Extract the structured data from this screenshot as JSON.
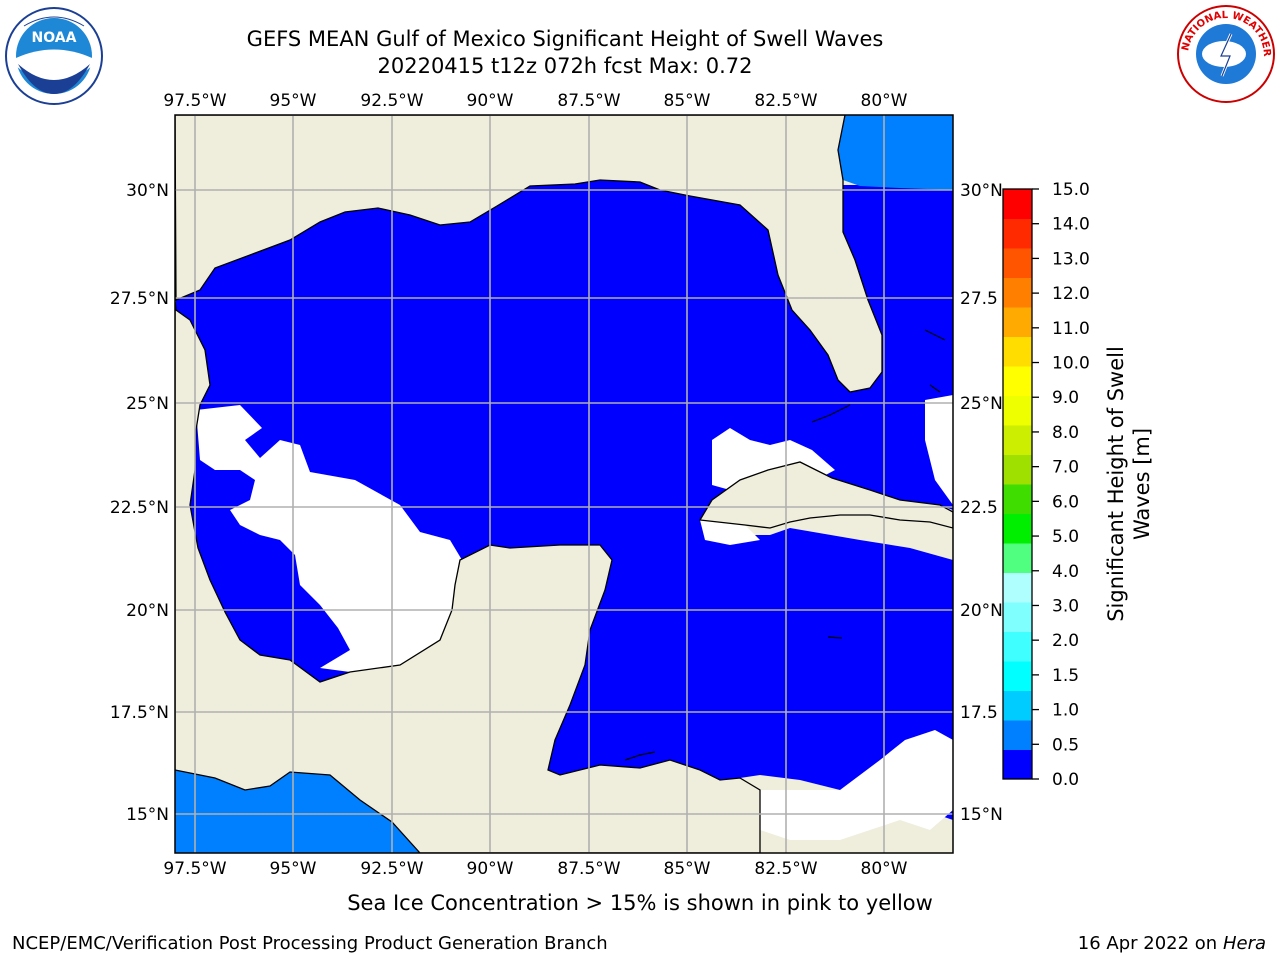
{
  "title": {
    "line1": "GEFS MEAN Gulf of Mexico Significant Height of Swell Waves",
    "line2": "20220415 t12z 072h fcst   Max: 0.72"
  },
  "logos": {
    "left": {
      "icon": "noaa-logo",
      "text": "NOAA"
    },
    "right": {
      "icon": "nws-logo",
      "text": "NATIONAL WEATHER SERVICE"
    }
  },
  "map": {
    "lon_labels": [
      "97.5°W",
      "95°W",
      "92.5°W",
      "90°W",
      "87.5°W",
      "85°W",
      "82.5°W",
      "80°W"
    ],
    "lat_labels": [
      "30°N",
      "27.5°N",
      "25°N",
      "22.5°N",
      "20°N",
      "17.5°N",
      "15°N"
    ],
    "lat_labels_right": [
      "30°N",
      "27.5",
      "25°N",
      "22.5",
      "20°N",
      "17.5",
      "15°N"
    ],
    "lon_range": [
      -98,
      -79
    ],
    "lat_range": [
      14,
      32
    ],
    "colors": {
      "land": "#efeddc",
      "ocean_low": "#0000ff",
      "ocean_mid": "#0080ff",
      "ice_free_missing": "#ffffff",
      "grid": "#b0b0b0",
      "coast": "#000000"
    }
  },
  "colorbar": {
    "label": "Significant Height of Swell Waves [m]",
    "label_line1": "Significant Height of Swell",
    "label_line2": "Waves [m]",
    "ticks": [
      "15.0",
      "14.0",
      "13.0",
      "12.0",
      "11.0",
      "10.0",
      "9.0",
      "8.0",
      "7.0",
      "6.0",
      "5.0",
      "4.0",
      "3.0",
      "2.0",
      "1.5",
      "1.0",
      "0.5",
      "0.0"
    ],
    "colors_bottom_to_top": [
      "#0000ff",
      "#0080ff",
      "#00ccff",
      "#00ffff",
      "#40ffff",
      "#80ffff",
      "#b0ffff",
      "#50ff80",
      "#00ee00",
      "#40dd00",
      "#a0e000",
      "#ccee00",
      "#eeff00",
      "#ffff00",
      "#ffdd00",
      "#ffaa00",
      "#ff8000",
      "#ff5500",
      "#ff2a00",
      "#ff0000"
    ]
  },
  "footnote": "Sea Ice Concentration > 15% is shown in pink to yellow",
  "credits": {
    "left": "NCEP/EMC/Verification Post Processing Product Generation Branch",
    "right_date": "16 Apr 2022 on ",
    "right_host": "Hera"
  }
}
